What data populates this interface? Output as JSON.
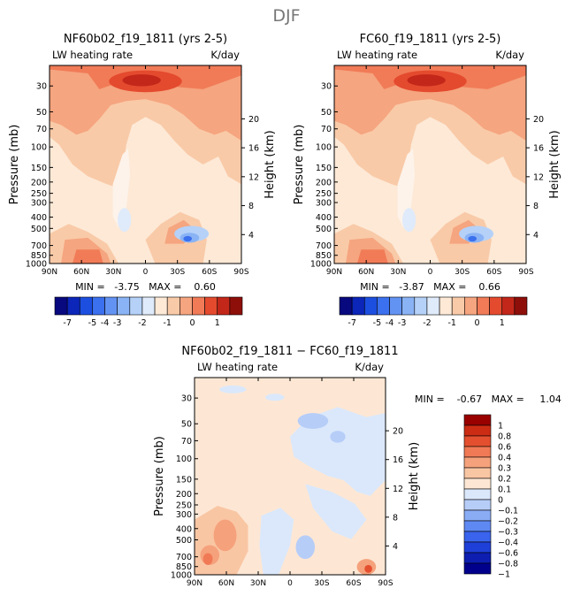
{
  "page_title": "DJF",
  "palettes": {
    "top": [
      "#08097f",
      "#0b26b8",
      "#1c4ee0",
      "#3b70ee",
      "#6393f2",
      "#8ab3f5",
      "#b5d1f8",
      "#dfeafa",
      "#fde9d6",
      "#f9caa8",
      "#f5a57f",
      "#f17b57",
      "#e44a2e",
      "#c3271a",
      "#8e0f0a"
    ],
    "diff": [
      "#00008c",
      "#0d1eb0",
      "#1f40d8",
      "#3a64ee",
      "#5f89f2",
      "#8aacf5",
      "#b6cdf8",
      "#dbe8fb",
      "#fde7d4",
      "#f9c6a4",
      "#f5a27c",
      "#f07a55",
      "#e4502f",
      "#cc2c14",
      "#990000"
    ]
  },
  "chart_data": [
    {
      "id": "panel-nf",
      "type": "heatmap",
      "title": "NF60b02_f19_1811 (yrs 2-5)",
      "left_label": "LW heating rate",
      "right_label": "K/day",
      "xlabel": "",
      "ylabel": "Pressure (mb)",
      "y2label": "Height (km)",
      "x_ticks": [
        "90N",
        "60N",
        "30N",
        "0",
        "30S",
        "60S",
        "90S"
      ],
      "x_range": [
        90,
        -90
      ],
      "p_ticks": [
        30,
        50,
        70,
        100,
        150,
        200,
        250,
        300,
        400,
        500,
        700,
        850,
        1000
      ],
      "p_range": [
        20,
        1000
      ],
      "height_ticks": [
        4,
        8,
        12,
        16,
        20
      ],
      "stats": "MIN =   -3.75   MAX =    0.60",
      "palette": "top"
    },
    {
      "id": "panel-fc",
      "type": "heatmap",
      "title": "FC60_f19_1811 (yrs 2-5)",
      "left_label": "LW heating rate",
      "right_label": "K/day",
      "xlabel": "",
      "ylabel": "Pressure (mb)",
      "y2label": "Height (km)",
      "x_ticks": [
        "90N",
        "60N",
        "30N",
        "0",
        "30S",
        "60S",
        "90S"
      ],
      "x_range": [
        90,
        -90
      ],
      "p_ticks": [
        30,
        50,
        70,
        100,
        150,
        200,
        250,
        300,
        400,
        500,
        700,
        850,
        1000
      ],
      "p_range": [
        20,
        1000
      ],
      "height_ticks": [
        4,
        8,
        12,
        16,
        20
      ],
      "stats": "MIN =   -3.87   MAX =    0.66",
      "palette": "top"
    },
    {
      "id": "panel-diff",
      "type": "heatmap",
      "title": "NF60b02_f19_1811 − FC60_f19_1811",
      "left_label": "LW heating rate",
      "right_label": "K/day",
      "xlabel": "",
      "ylabel": "Pressure (mb)",
      "y2label": "Height (km)",
      "x_ticks": [
        "90N",
        "60N",
        "30N",
        "0",
        "30S",
        "60S",
        "90S"
      ],
      "x_range": [
        90,
        -90
      ],
      "p_ticks": [
        30,
        50,
        70,
        100,
        150,
        200,
        250,
        300,
        400,
        500,
        700,
        850,
        1000
      ],
      "p_range": [
        20,
        1000
      ],
      "height_ticks": [
        4,
        8,
        12,
        16,
        20
      ],
      "stats": "MIN =    -0.67   MAX =     1.04",
      "palette": "diff"
    }
  ],
  "colorbar_top": {
    "orientation": "horizontal",
    "labels": [
      "-7",
      "-5",
      "-4",
      "-3",
      "-2",
      "-1",
      "0",
      "1"
    ]
  },
  "colorbar_diff": {
    "orientation": "vertical",
    "labels": [
      "1",
      "0.8",
      "0.6",
      "0.4",
      "0.3",
      "0.2",
      "0.1",
      "0",
      "−0.1",
      "−0.2",
      "−0.3",
      "−0.4",
      "−0.6",
      "−0.8",
      "−1"
    ]
  }
}
